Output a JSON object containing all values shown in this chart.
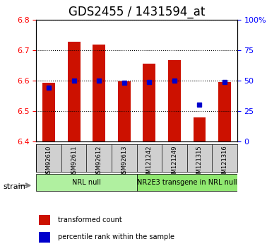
{
  "title": "GDS2455 / 1431594_at",
  "samples": [
    "GSM92610",
    "GSM92611",
    "GSM92612",
    "GSM92613",
    "GSM121242",
    "GSM121249",
    "GSM121315",
    "GSM121316"
  ],
  "transformed_counts": [
    6.593,
    6.728,
    6.718,
    6.597,
    6.655,
    6.667,
    6.478,
    6.596
  ],
  "percentile_ranks": [
    44,
    50,
    50,
    48,
    49,
    50,
    30,
    49
  ],
  "ylim_left": [
    6.4,
    6.8
  ],
  "ylim_right": [
    0,
    100
  ],
  "yticks_left": [
    6.4,
    6.5,
    6.6,
    6.7,
    6.8
  ],
  "yticks_right": [
    0,
    25,
    50,
    75,
    100
  ],
  "yticklabels_right": [
    "0",
    "25",
    "50",
    "75",
    "100%"
  ],
  "groups": [
    {
      "label": "NRL null",
      "indices": [
        0,
        1,
        2,
        3
      ],
      "color": "#b0f0a0"
    },
    {
      "label": "NR2E3 transgene in NRL null",
      "indices": [
        4,
        5,
        6,
        7
      ],
      "color": "#90e870"
    }
  ],
  "bar_color": "#cc1100",
  "marker_color": "#0000cc",
  "bar_bottom": 6.4,
  "bar_width": 0.5,
  "strain_label": "strain",
  "legend_items": [
    {
      "label": "transformed count",
      "color": "#cc1100"
    },
    {
      "label": "percentile rank within the sample",
      "color": "#0000cc"
    }
  ],
  "background_color": "#ffffff",
  "plot_bg": "#ffffff",
  "grid_color": "#000000",
  "title_fontsize": 12,
  "tick_fontsize": 8
}
